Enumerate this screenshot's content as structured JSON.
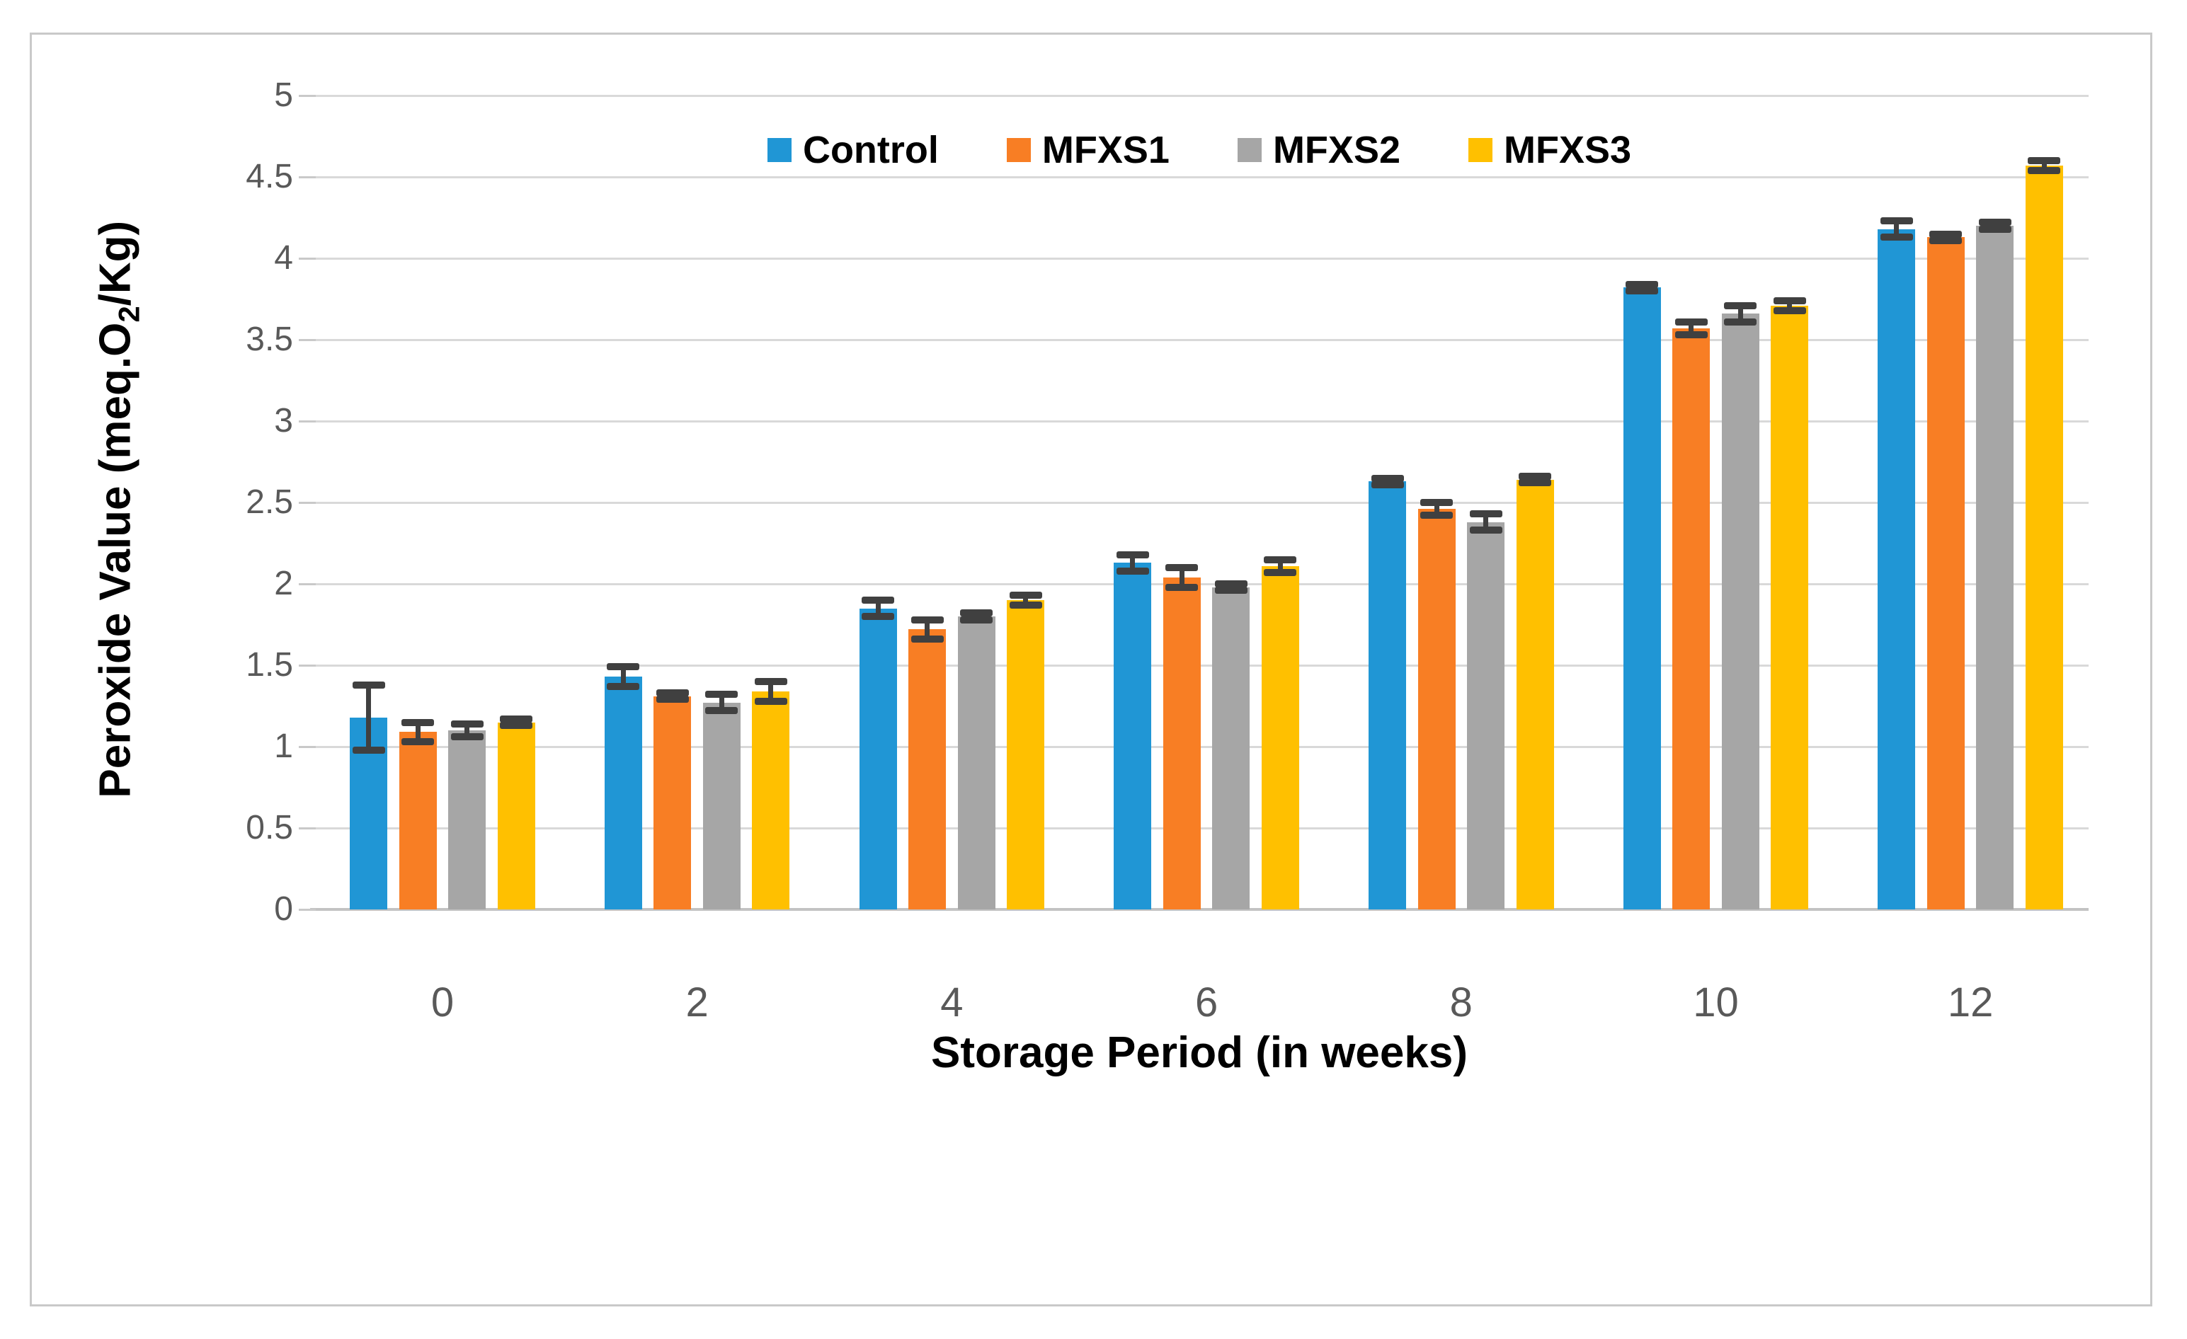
{
  "figure": {
    "background_color": "#ffffff",
    "border_color": "#c9c9c9"
  },
  "axis_style": {
    "gridline_color": "#d9d9d9",
    "axis_line_color": "#c3c3c3",
    "tick_label_color": "#595959",
    "error_bar_color": "#404040"
  },
  "ylabel_parts": {
    "pre": "Peroxide Value (meq.O",
    "sub": "2",
    "post": "/Kg)"
  },
  "chart_data": {
    "type": "bar",
    "title": "",
    "xlabel": "Storage Period (in weeks)",
    "ylabel": "Peroxide Value (meq.O2/Kg)",
    "categories": [
      "0",
      "2",
      "4",
      "6",
      "8",
      "10",
      "12"
    ],
    "ylim": [
      0,
      5
    ],
    "y_tick_step": 0.5,
    "y_tick_labels": [
      "0",
      "0.5",
      "1",
      "1.5",
      "2",
      "2.5",
      "3",
      "3.5",
      "4",
      "4.5",
      "5"
    ],
    "grid": true,
    "legend_position": "top-center-inside",
    "series": [
      {
        "name": "Control",
        "color": "#2096d5",
        "values": [
          1.18,
          1.43,
          1.85,
          2.13,
          2.63,
          3.82,
          4.18
        ],
        "errors": [
          0.2,
          0.06,
          0.05,
          0.05,
          0.02,
          0.02,
          0.05
        ]
      },
      {
        "name": "MFXS1",
        "color": "#f87e24",
        "values": [
          1.09,
          1.31,
          1.72,
          2.04,
          2.46,
          3.57,
          4.13
        ],
        "errors": [
          0.06,
          0.02,
          0.06,
          0.06,
          0.04,
          0.04,
          0.02
        ]
      },
      {
        "name": "MFXS2",
        "color": "#a6a6a6",
        "values": [
          1.1,
          1.27,
          1.8,
          1.98,
          2.38,
          3.66,
          4.2
        ],
        "errors": [
          0.04,
          0.05,
          0.02,
          0.02,
          0.05,
          0.05,
          0.02
        ]
      },
      {
        "name": "MFXS3",
        "color": "#ffc000",
        "values": [
          1.15,
          1.34,
          1.9,
          2.11,
          2.64,
          3.71,
          4.57
        ],
        "errors": [
          0.02,
          0.06,
          0.03,
          0.04,
          0.02,
          0.03,
          0.03
        ]
      }
    ]
  }
}
